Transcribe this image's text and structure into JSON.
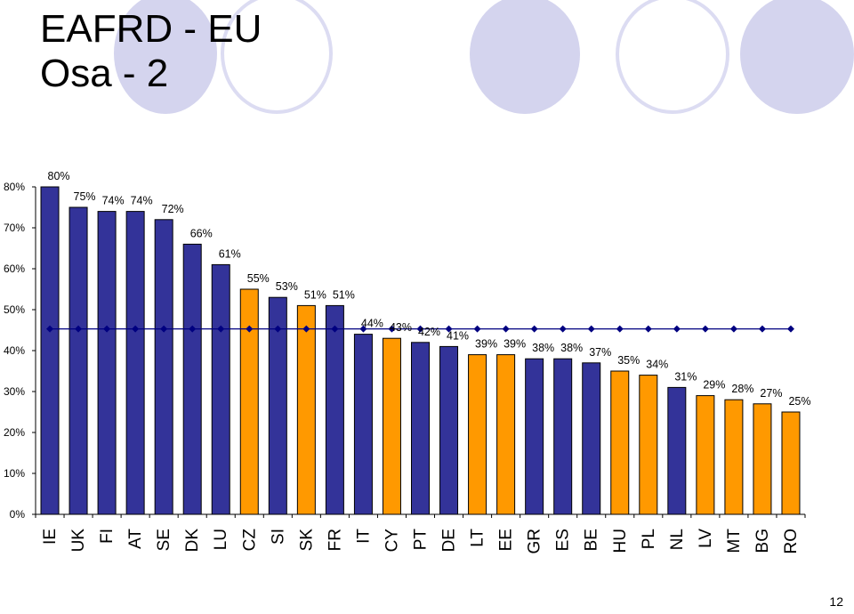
{
  "slide": {
    "title_line1": "EAFRD - EU",
    "title_line2": "Osa - 2",
    "page_number": "12"
  },
  "chart_data": {
    "type": "bar",
    "categories": [
      "IE",
      "UK",
      "FI",
      "AT",
      "SE",
      "DK",
      "LU",
      "CZ",
      "SI",
      "SK",
      "FR",
      "IT",
      "CY",
      "PT",
      "DE",
      "LT",
      "EE",
      "GR",
      "ES",
      "BE",
      "HU",
      "PL",
      "NL",
      "LV",
      "MT",
      "BG",
      "RO"
    ],
    "values": [
      80,
      75,
      74,
      74,
      72,
      66,
      61,
      55,
      53,
      51,
      51,
      44,
      43,
      42,
      41,
      39,
      39,
      38,
      38,
      37,
      35,
      34,
      31,
      29,
      28,
      27,
      25
    ],
    "value_labels": [
      "80%",
      "75%",
      "74%",
      "74%",
      "72%",
      "66%",
      "61%",
      "55%",
      "53%",
      "51%",
      "51%",
      "44%",
      "43%",
      "42%",
      "41%",
      "39%",
      "39%",
      "38%",
      "38%",
      "37%",
      "35%",
      "34%",
      "31%",
      "29%",
      "28%",
      "27%",
      "25%"
    ],
    "bar_group": [
      "blue",
      "blue",
      "blue",
      "blue",
      "blue",
      "blue",
      "blue",
      "orange",
      "blue",
      "orange",
      "blue",
      "blue",
      "orange",
      "blue",
      "blue",
      "orange",
      "orange",
      "blue",
      "blue",
      "blue",
      "orange",
      "orange",
      "blue",
      "orange",
      "orange",
      "orange",
      "orange"
    ],
    "colors": {
      "blue": "#333399",
      "orange": "#ff9900",
      "reference_line": "#000080"
    },
    "reference_line_value": 45.3,
    "ylim": [
      0,
      80
    ],
    "yticks": [
      0,
      10,
      20,
      30,
      40,
      50,
      60,
      70,
      80
    ],
    "ytick_labels": [
      "0%",
      "10%",
      "20%",
      "30%",
      "40%",
      "50%",
      "60%",
      "70%",
      "80%"
    ],
    "grid": false,
    "xlabel": "",
    "ylabel": ""
  }
}
